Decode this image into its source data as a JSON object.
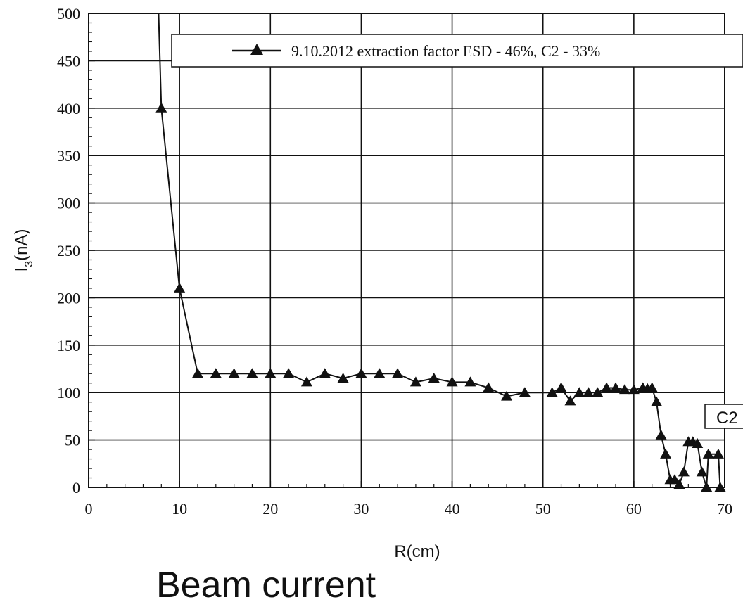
{
  "caption": "Beam current",
  "annotation": "C2",
  "chart_data": {
    "type": "line",
    "xlabel": "R(cm)",
    "ylabel_main": "I",
    "ylabel_sub": "3",
    "ylabel_unit": "(nA)",
    "xlim": [
      0,
      70
    ],
    "ylim": [
      0,
      500
    ],
    "x_ticks": [
      0,
      10,
      20,
      30,
      40,
      50,
      60,
      70
    ],
    "y_ticks": [
      0,
      50,
      100,
      150,
      200,
      250,
      300,
      350,
      400,
      450,
      500
    ],
    "x_minor_step": 2,
    "y_minor_step": 10,
    "grid": true,
    "legend_position": "top-right",
    "series": [
      {
        "name": "9.10.2012 extraction factor ESD - 46%, C2 - 33%",
        "marker": "triangle",
        "color": "#111111",
        "x": [
          8,
          10,
          12,
          14,
          16,
          18,
          20,
          22,
          24,
          26,
          28,
          30,
          32,
          34,
          36,
          38,
          40,
          42,
          44,
          46,
          48,
          51,
          52,
          53,
          54,
          55,
          56,
          57,
          58,
          59,
          60,
          61,
          61.5,
          62,
          62.5,
          63,
          63.5,
          64,
          64.5,
          65,
          65.5,
          66,
          66.5,
          67,
          67.5,
          68,
          68.2,
          69.3,
          69.5
        ],
        "y": [
          400,
          210,
          120,
          120,
          120,
          120,
          120,
          120,
          111,
          120,
          115,
          120,
          120,
          120,
          111,
          115,
          111,
          111,
          105,
          96,
          100,
          100,
          105,
          91,
          100,
          100,
          100,
          105,
          105,
          103,
          103,
          105,
          104,
          105,
          90,
          55,
          35,
          8,
          8,
          3,
          16,
          48,
          48,
          46,
          16,
          0,
          35,
          35,
          0
        ]
      }
    ]
  }
}
